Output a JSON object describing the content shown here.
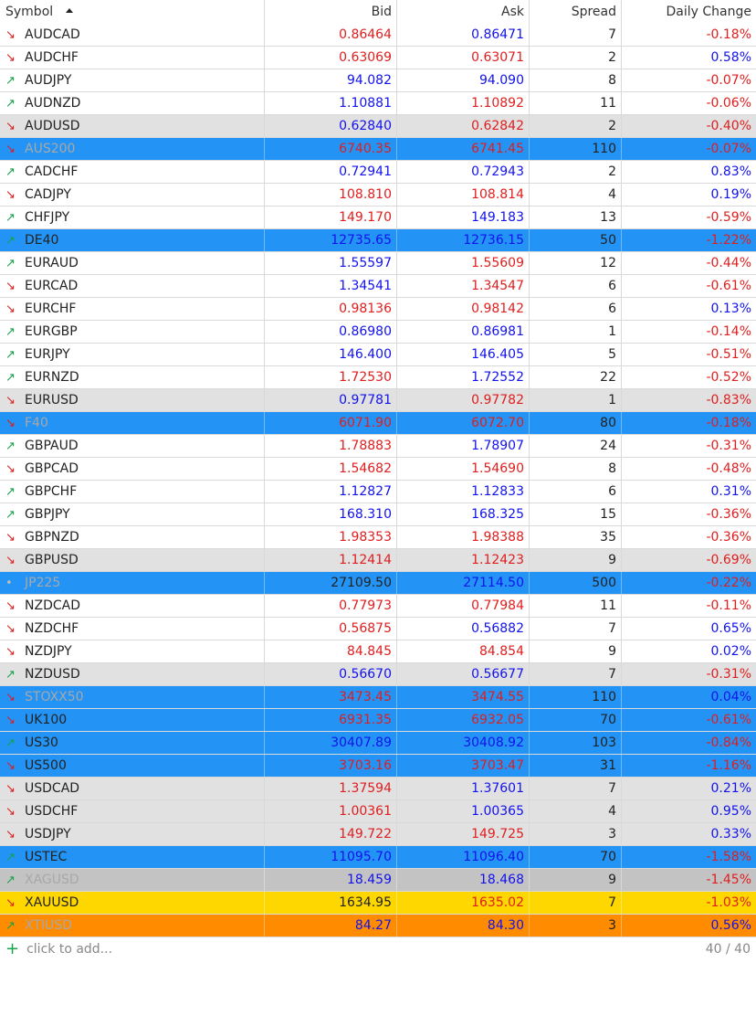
{
  "header": {
    "symbol": "Symbol",
    "bid": "Bid",
    "ask": "Ask",
    "spread": "Spread",
    "daily_change": "Daily Change"
  },
  "rows": [
    {
      "symbol": "AUDCAD",
      "dir": "down",
      "bid": "0.86464",
      "bid_color": "red",
      "ask": "0.86471",
      "ask_color": "blue",
      "spread": "7",
      "change": "-0.18%",
      "change_color": "red",
      "bg": "white",
      "faded": false
    },
    {
      "symbol": "AUDCHF",
      "dir": "down",
      "bid": "0.63069",
      "bid_color": "red",
      "ask": "0.63071",
      "ask_color": "red",
      "spread": "2",
      "change": "0.58%",
      "change_color": "blue",
      "bg": "white",
      "faded": false
    },
    {
      "symbol": "AUDJPY",
      "dir": "up",
      "bid": "94.082",
      "bid_color": "blue",
      "ask": "94.090",
      "ask_color": "blue",
      "spread": "8",
      "change": "-0.07%",
      "change_color": "red",
      "bg": "white",
      "faded": false
    },
    {
      "symbol": "AUDNZD",
      "dir": "up",
      "bid": "1.10881",
      "bid_color": "blue",
      "ask": "1.10892",
      "ask_color": "red",
      "spread": "11",
      "change": "-0.06%",
      "change_color": "red",
      "bg": "white",
      "faded": false
    },
    {
      "symbol": "AUDUSD",
      "dir": "down",
      "bid": "0.62840",
      "bid_color": "blue",
      "ask": "0.62842",
      "ask_color": "red",
      "spread": "2",
      "change": "-0.40%",
      "change_color": "red",
      "bg": "gray",
      "faded": false
    },
    {
      "symbol": "AUS200",
      "dir": "down",
      "bid": "6740.35",
      "bid_color": "red",
      "ask": "6741.45",
      "ask_color": "red",
      "spread": "110",
      "change": "-0.07%",
      "change_color": "red",
      "bg": "blue",
      "faded": true
    },
    {
      "symbol": "CADCHF",
      "dir": "up",
      "bid": "0.72941",
      "bid_color": "blue",
      "ask": "0.72943",
      "ask_color": "blue",
      "spread": "2",
      "change": "0.83%",
      "change_color": "blue",
      "bg": "white",
      "faded": false
    },
    {
      "symbol": "CADJPY",
      "dir": "down",
      "bid": "108.810",
      "bid_color": "red",
      "ask": "108.814",
      "ask_color": "red",
      "spread": "4",
      "change": "0.19%",
      "change_color": "blue",
      "bg": "white",
      "faded": false
    },
    {
      "symbol": "CHFJPY",
      "dir": "up",
      "bid": "149.170",
      "bid_color": "red",
      "ask": "149.183",
      "ask_color": "blue",
      "spread": "13",
      "change": "-0.59%",
      "change_color": "red",
      "bg": "white",
      "faded": false
    },
    {
      "symbol": "DE40",
      "dir": "up",
      "bid": "12735.65",
      "bid_color": "blue",
      "ask": "12736.15",
      "ask_color": "blue",
      "spread": "50",
      "change": "-1.22%",
      "change_color": "red",
      "bg": "blue",
      "faded": false
    },
    {
      "symbol": "EURAUD",
      "dir": "up",
      "bid": "1.55597",
      "bid_color": "blue",
      "ask": "1.55609",
      "ask_color": "red",
      "spread": "12",
      "change": "-0.44%",
      "change_color": "red",
      "bg": "white",
      "faded": false
    },
    {
      "symbol": "EURCAD",
      "dir": "down",
      "bid": "1.34541",
      "bid_color": "blue",
      "ask": "1.34547",
      "ask_color": "red",
      "spread": "6",
      "change": "-0.61%",
      "change_color": "red",
      "bg": "white",
      "faded": false
    },
    {
      "symbol": "EURCHF",
      "dir": "down",
      "bid": "0.98136",
      "bid_color": "red",
      "ask": "0.98142",
      "ask_color": "red",
      "spread": "6",
      "change": "0.13%",
      "change_color": "blue",
      "bg": "white",
      "faded": false
    },
    {
      "symbol": "EURGBP",
      "dir": "up",
      "bid": "0.86980",
      "bid_color": "blue",
      "ask": "0.86981",
      "ask_color": "blue",
      "spread": "1",
      "change": "-0.14%",
      "change_color": "red",
      "bg": "white",
      "faded": false
    },
    {
      "symbol": "EURJPY",
      "dir": "up",
      "bid": "146.400",
      "bid_color": "blue",
      "ask": "146.405",
      "ask_color": "blue",
      "spread": "5",
      "change": "-0.51%",
      "change_color": "red",
      "bg": "white",
      "faded": false
    },
    {
      "symbol": "EURNZD",
      "dir": "up",
      "bid": "1.72530",
      "bid_color": "red",
      "ask": "1.72552",
      "ask_color": "blue",
      "spread": "22",
      "change": "-0.52%",
      "change_color": "red",
      "bg": "white",
      "faded": false
    },
    {
      "symbol": "EURUSD",
      "dir": "down",
      "bid": "0.97781",
      "bid_color": "blue",
      "ask": "0.97782",
      "ask_color": "red",
      "spread": "1",
      "change": "-0.83%",
      "change_color": "red",
      "bg": "gray",
      "faded": false
    },
    {
      "symbol": "F40",
      "dir": "down",
      "bid": "6071.90",
      "bid_color": "red",
      "ask": "6072.70",
      "ask_color": "red",
      "spread": "80",
      "change": "-0.18%",
      "change_color": "red",
      "bg": "blue",
      "faded": true
    },
    {
      "symbol": "GBPAUD",
      "dir": "up",
      "bid": "1.78883",
      "bid_color": "red",
      "ask": "1.78907",
      "ask_color": "blue",
      "spread": "24",
      "change": "-0.31%",
      "change_color": "red",
      "bg": "white",
      "faded": false
    },
    {
      "symbol": "GBPCAD",
      "dir": "down",
      "bid": "1.54682",
      "bid_color": "red",
      "ask": "1.54690",
      "ask_color": "red",
      "spread": "8",
      "change": "-0.48%",
      "change_color": "red",
      "bg": "white",
      "faded": false
    },
    {
      "symbol": "GBPCHF",
      "dir": "up",
      "bid": "1.12827",
      "bid_color": "blue",
      "ask": "1.12833",
      "ask_color": "blue",
      "spread": "6",
      "change": "0.31%",
      "change_color": "blue",
      "bg": "white",
      "faded": false
    },
    {
      "symbol": "GBPJPY",
      "dir": "up",
      "bid": "168.310",
      "bid_color": "blue",
      "ask": "168.325",
      "ask_color": "blue",
      "spread": "15",
      "change": "-0.36%",
      "change_color": "red",
      "bg": "white",
      "faded": false
    },
    {
      "symbol": "GBPNZD",
      "dir": "down",
      "bid": "1.98353",
      "bid_color": "red",
      "ask": "1.98388",
      "ask_color": "red",
      "spread": "35",
      "change": "-0.36%",
      "change_color": "red",
      "bg": "white",
      "faded": false
    },
    {
      "symbol": "GBPUSD",
      "dir": "down",
      "bid": "1.12414",
      "bid_color": "red",
      "ask": "1.12423",
      "ask_color": "red",
      "spread": "9",
      "change": "-0.69%",
      "change_color": "red",
      "bg": "gray",
      "faded": false
    },
    {
      "symbol": "JP225",
      "dir": "dot",
      "bid": "27109.50",
      "bid_color": "black",
      "ask": "27114.50",
      "ask_color": "blue",
      "spread": "500",
      "change": "-0.22%",
      "change_color": "red",
      "bg": "blue",
      "faded": true
    },
    {
      "symbol": "NZDCAD",
      "dir": "down",
      "bid": "0.77973",
      "bid_color": "red",
      "ask": "0.77984",
      "ask_color": "red",
      "spread": "11",
      "change": "-0.11%",
      "change_color": "red",
      "bg": "white",
      "faded": false
    },
    {
      "symbol": "NZDCHF",
      "dir": "down",
      "bid": "0.56875",
      "bid_color": "red",
      "ask": "0.56882",
      "ask_color": "blue",
      "spread": "7",
      "change": "0.65%",
      "change_color": "blue",
      "bg": "white",
      "faded": false
    },
    {
      "symbol": "NZDJPY",
      "dir": "down",
      "bid": "84.845",
      "bid_color": "red",
      "ask": "84.854",
      "ask_color": "red",
      "spread": "9",
      "change": "0.02%",
      "change_color": "blue",
      "bg": "white",
      "faded": false
    },
    {
      "symbol": "NZDUSD",
      "dir": "up",
      "bid": "0.56670",
      "bid_color": "blue",
      "ask": "0.56677",
      "ask_color": "blue",
      "spread": "7",
      "change": "-0.31%",
      "change_color": "red",
      "bg": "gray",
      "faded": false
    },
    {
      "symbol": "STOXX50",
      "dir": "down",
      "bid": "3473.45",
      "bid_color": "red",
      "ask": "3474.55",
      "ask_color": "red",
      "spread": "110",
      "change": "0.04%",
      "change_color": "blue",
      "bg": "blue",
      "faded": true
    },
    {
      "symbol": "UK100",
      "dir": "down",
      "bid": "6931.35",
      "bid_color": "red",
      "ask": "6932.05",
      "ask_color": "red",
      "spread": "70",
      "change": "-0.61%",
      "change_color": "red",
      "bg": "blue",
      "faded": false
    },
    {
      "symbol": "US30",
      "dir": "up",
      "bid": "30407.89",
      "bid_color": "blue",
      "ask": "30408.92",
      "ask_color": "blue",
      "spread": "103",
      "change": "-0.84%",
      "change_color": "red",
      "bg": "blue",
      "faded": false
    },
    {
      "symbol": "US500",
      "dir": "down",
      "bid": "3703.16",
      "bid_color": "red",
      "ask": "3703.47",
      "ask_color": "red",
      "spread": "31",
      "change": "-1.16%",
      "change_color": "red",
      "bg": "blue",
      "faded": false
    },
    {
      "symbol": "USDCAD",
      "dir": "down",
      "bid": "1.37594",
      "bid_color": "red",
      "ask": "1.37601",
      "ask_color": "blue",
      "spread": "7",
      "change": "0.21%",
      "change_color": "blue",
      "bg": "gray",
      "faded": false
    },
    {
      "symbol": "USDCHF",
      "dir": "down",
      "bid": "1.00361",
      "bid_color": "red",
      "ask": "1.00365",
      "ask_color": "blue",
      "spread": "4",
      "change": "0.95%",
      "change_color": "blue",
      "bg": "gray",
      "faded": false
    },
    {
      "symbol": "USDJPY",
      "dir": "down",
      "bid": "149.722",
      "bid_color": "red",
      "ask": "149.725",
      "ask_color": "red",
      "spread": "3",
      "change": "0.33%",
      "change_color": "blue",
      "bg": "gray",
      "faded": false
    },
    {
      "symbol": "USTEC",
      "dir": "up",
      "bid": "11095.70",
      "bid_color": "blue",
      "ask": "11096.40",
      "ask_color": "blue",
      "spread": "70",
      "change": "-1.58%",
      "change_color": "red",
      "bg": "blue",
      "faded": false
    },
    {
      "symbol": "XAGUSD",
      "dir": "up",
      "bid": "18.459",
      "bid_color": "blue",
      "ask": "18.468",
      "ask_color": "blue",
      "spread": "9",
      "change": "-1.45%",
      "change_color": "red",
      "bg": "darkgray",
      "faded": true
    },
    {
      "symbol": "XAUUSD",
      "dir": "down",
      "bid": "1634.95",
      "bid_color": "black",
      "ask": "1635.02",
      "ask_color": "red",
      "spread": "7",
      "change": "-1.03%",
      "change_color": "red",
      "bg": "yellow",
      "faded": false
    },
    {
      "symbol": "XTIUSD",
      "dir": "up",
      "bid": "84.27",
      "bid_color": "blue",
      "ask": "84.30",
      "ask_color": "blue",
      "spread": "3",
      "change": "0.56%",
      "change_color": "blue",
      "bg": "orange",
      "faded": true
    }
  ],
  "footer": {
    "add_label": "click to add...",
    "count": "40 / 40"
  },
  "colors": {
    "up_arrow": "#16a34a",
    "down_arrow": "#e01e1e",
    "value_red": "#e01e1e",
    "value_blue": "#1212ee",
    "row_blue": "#2394f5",
    "row_gray": "#e1e1e1",
    "row_yellow": "#ffd700",
    "row_orange": "#ff8c00"
  },
  "icons": {
    "up": "trend-up-icon",
    "down": "trend-down-icon",
    "dot": "no-change-dot-icon",
    "sort": "sort-ascending-icon",
    "add": "plus-icon"
  }
}
